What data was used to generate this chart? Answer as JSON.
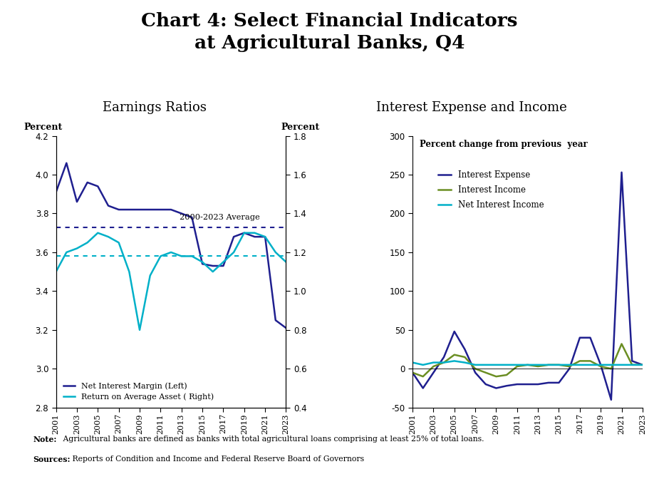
{
  "title": "Chart 4: Select Financial Indicators\nat Agricultural Banks, Q4",
  "title_fontsize": 19,
  "left_title": "Earnings Ratios",
  "right_title": "Interest Expense and Income",
  "subtitle_fontsize": 13,
  "years": [
    2001,
    2002,
    2003,
    2004,
    2005,
    2006,
    2007,
    2008,
    2009,
    2010,
    2011,
    2012,
    2013,
    2014,
    2015,
    2016,
    2017,
    2018,
    2019,
    2020,
    2021,
    2022,
    2023
  ],
  "nim": [
    3.91,
    4.06,
    3.86,
    3.96,
    3.94,
    3.84,
    3.82,
    3.82,
    3.82,
    3.82,
    3.82,
    3.82,
    3.8,
    3.78,
    3.54,
    3.53,
    3.53,
    3.68,
    3.7,
    3.68,
    3.68,
    3.25,
    3.21
  ],
  "nim_avg": 3.73,
  "nim_color": "#1f1f8f",
  "roaa": [
    1.1,
    1.2,
    1.22,
    1.25,
    1.3,
    1.28,
    1.25,
    1.1,
    0.8,
    1.08,
    1.18,
    1.2,
    1.18,
    1.18,
    1.15,
    1.1,
    1.15,
    1.2,
    1.3,
    1.3,
    1.28,
    1.2,
    1.15
  ],
  "roaa_avg": 1.18,
  "roaa_color": "#00b0c8",
  "nim_ylim": [
    2.8,
    4.2
  ],
  "nim_yticks": [
    2.8,
    3.0,
    3.2,
    3.4,
    3.6,
    3.8,
    4.0,
    4.2
  ],
  "roaa_ylim": [
    0.4,
    1.8
  ],
  "roaa_yticks": [
    0.4,
    0.6,
    0.8,
    1.0,
    1.2,
    1.4,
    1.6,
    1.8
  ],
  "ie": [
    -5,
    -25,
    -5,
    15,
    48,
    25,
    -5,
    -20,
    -25,
    -22,
    -20,
    -20,
    -20,
    -18,
    -18,
    0,
    40,
    40,
    5,
    -40,
    253,
    10,
    5
  ],
  "ii": [
    -5,
    -10,
    3,
    8,
    18,
    15,
    0,
    -5,
    -10,
    -8,
    3,
    5,
    3,
    5,
    5,
    3,
    10,
    10,
    3,
    0,
    32,
    5,
    5
  ],
  "nii": [
    8,
    5,
    8,
    8,
    10,
    8,
    5,
    5,
    5,
    5,
    5,
    5,
    5,
    5,
    5,
    5,
    5,
    5,
    5,
    5,
    5,
    5,
    5
  ],
  "ie_color": "#1f1f8f",
  "ii_color": "#6b8e23",
  "nii_color": "#00b0c8",
  "right_ylim": [
    -50,
    300
  ],
  "right_yticks": [
    -50,
    0,
    50,
    100,
    150,
    200,
    250,
    300
  ],
  "avg_label": "2000-2023 Average",
  "note_bold": "Note:",
  "note_rest": " Agricultural banks are defined as banks with total agricultural loans comprising at least 25% of total loans.",
  "source_bold": "Sources:",
  "source_rest": " Reports of Condition and Income and Federal Reserve Board of Governors",
  "background_color": "#ffffff"
}
